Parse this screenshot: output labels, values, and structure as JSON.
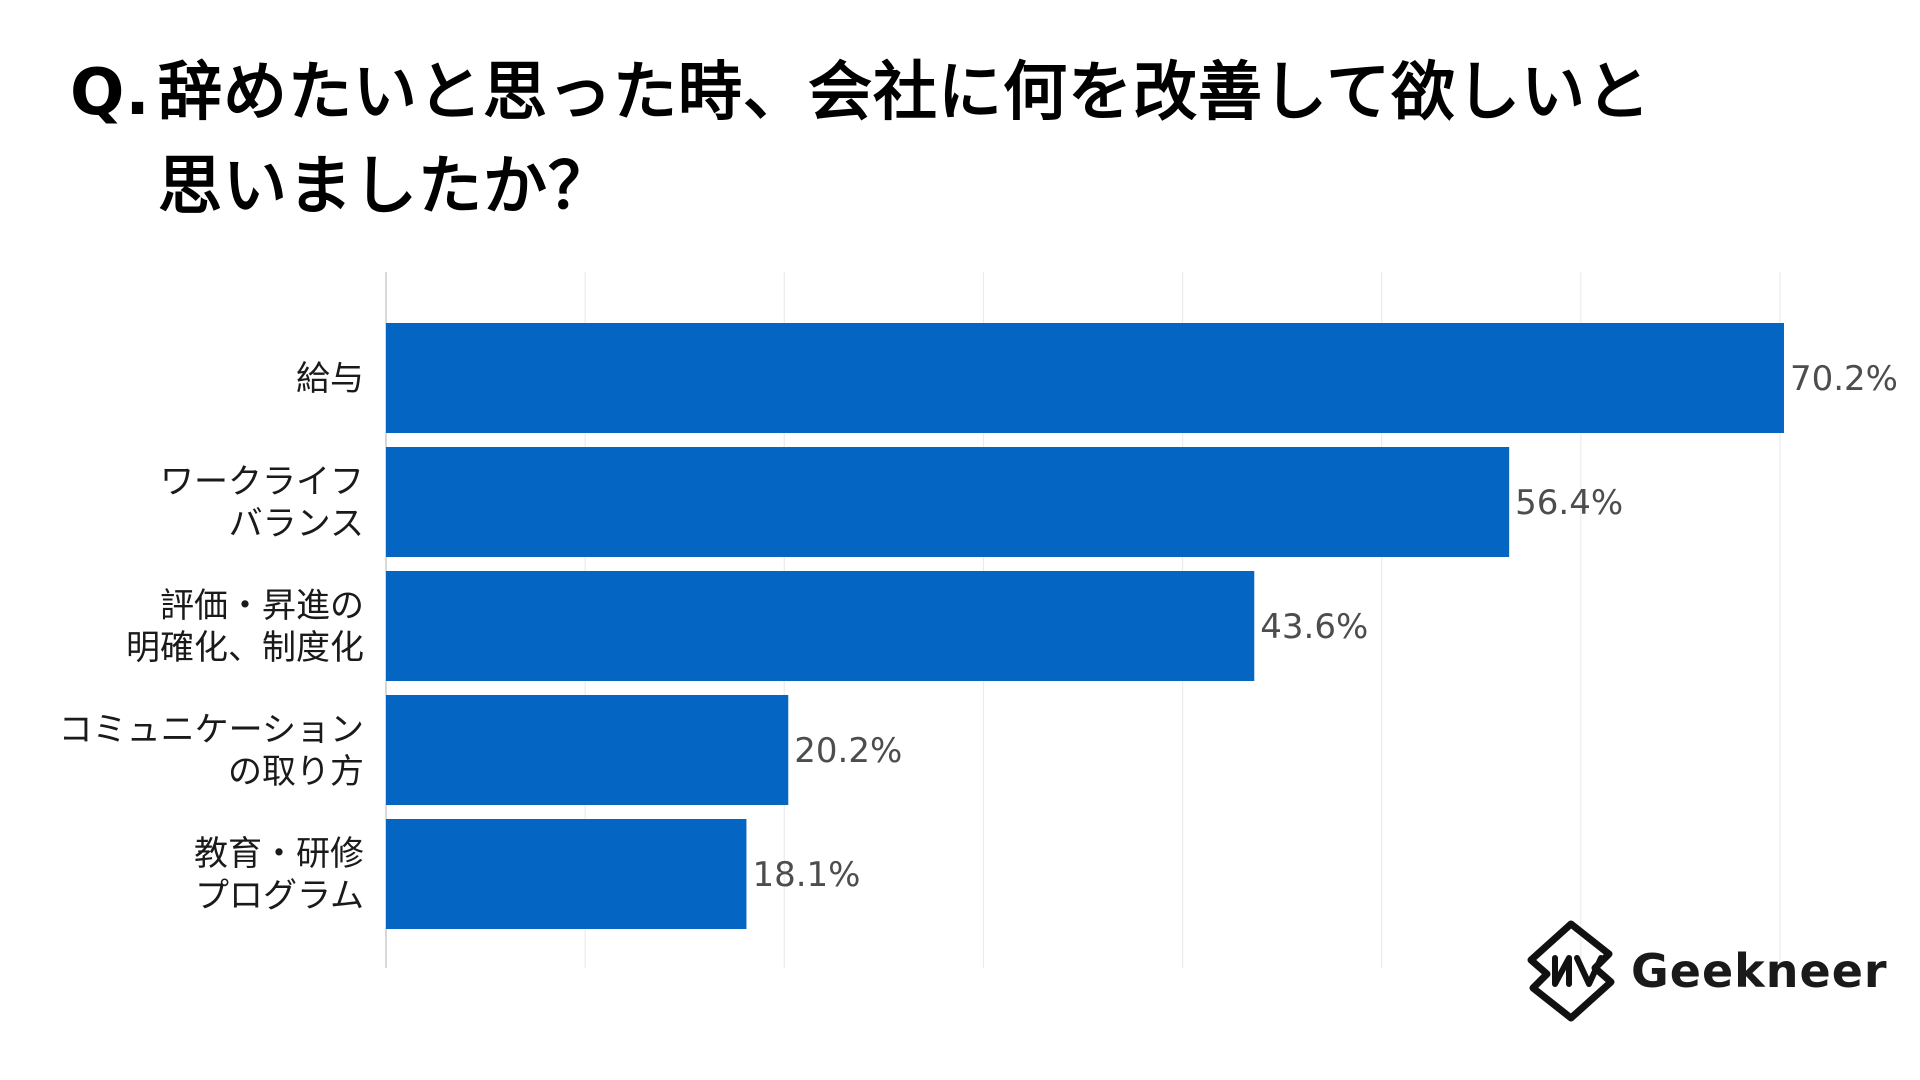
{
  "title": {
    "prefix": "Q.",
    "line1": "辞めたいと思った時、会社に何を改善して欲しいと",
    "line2": "思いましたか？"
  },
  "logo": {
    "text": "Geekneer"
  },
  "colors": {
    "bar": "#0565c2",
    "grid": "#ebebeb",
    "axis": "#cccccc"
  },
  "chart_data": {
    "type": "bar",
    "orientation": "horizontal",
    "categories": [
      [
        "給与"
      ],
      [
        "ワークライフ",
        "バランス"
      ],
      [
        "評価・昇進の",
        "明確化、制度化"
      ],
      [
        "コミュニケーション",
        "の取り方"
      ],
      [
        "教育・研修",
        "プログラム"
      ]
    ],
    "values": [
      70.2,
      56.4,
      43.6,
      20.2,
      18.1
    ],
    "value_labels": [
      "70.2%",
      "56.4%",
      "43.6%",
      "20.2%",
      "18.1%"
    ],
    "xlim": [
      0,
      70
    ],
    "grid": true,
    "legend": "none"
  }
}
